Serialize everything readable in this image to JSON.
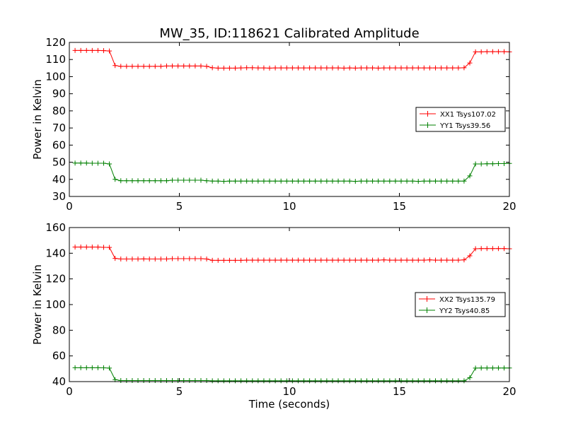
{
  "chart_data": {
    "title": "MW_35, ID:118621 Calibrated Amplitude",
    "xlabel": "Time (seconds)",
    "grid": false,
    "legend_position": "right",
    "colors": {
      "xx": "#ff0000",
      "yy": "#008000"
    },
    "subplots": [
      {
        "type": "line",
        "ylabel": "Power in Kelvin",
        "xlim": [
          0,
          20
        ],
        "ylim": [
          30,
          120
        ],
        "xticks": [
          0,
          5,
          10,
          15,
          20
        ],
        "yticks": [
          30,
          40,
          50,
          60,
          70,
          80,
          90,
          100,
          110,
          120
        ],
        "series": [
          {
            "name": "XX1 Tsys107.02",
            "color_key": "xx",
            "x": [
              0.26,
              0.52,
              0.78,
              1.04,
              1.3,
              1.56,
              1.82,
              2.08,
              2.34,
              2.6,
              2.86,
              3.12,
              3.38,
              3.64,
              3.9,
              4.16,
              4.42,
              4.68,
              4.94,
              5.2,
              5.46,
              5.72,
              5.98,
              6.24,
              6.5,
              6.76,
              7.02,
              7.28,
              7.54,
              7.8,
              8.06,
              8.32,
              8.58,
              8.84,
              9.1,
              9.36,
              9.62,
              9.88,
              10.14,
              10.4,
              10.66,
              10.92,
              11.18,
              11.44,
              11.7,
              11.96,
              12.22,
              12.48,
              12.74,
              13.0,
              13.26,
              13.52,
              13.78,
              14.04,
              14.3,
              14.56,
              14.82,
              15.08,
              15.34,
              15.6,
              15.86,
              16.12,
              16.38,
              16.64,
              16.9,
              17.16,
              17.42,
              17.68,
              17.94,
              18.2,
              18.46,
              18.72,
              18.98,
              19.24,
              19.5,
              19.76,
              20.0
            ],
            "y": [
              115.3,
              115.3,
              115.3,
              115.3,
              115.3,
              115.2,
              115.0,
              106.5,
              106.0,
              106.0,
              106.0,
              106.0,
              106.0,
              106.0,
              106.0,
              106.0,
              106.2,
              106.2,
              106.2,
              106.2,
              106.2,
              106.2,
              106.2,
              106.0,
              105.2,
              105.0,
              105.0,
              105.0,
              105.0,
              105.1,
              105.2,
              105.2,
              105.1,
              105.1,
              105.0,
              105.1,
              105.1,
              105.1,
              105.1,
              105.1,
              105.1,
              105.1,
              105.1,
              105.1,
              105.1,
              105.1,
              105.1,
              105.0,
              105.1,
              105.0,
              105.1,
              105.1,
              105.1,
              105.0,
              105.1,
              105.1,
              105.1,
              105.1,
              105.1,
              105.1,
              105.1,
              105.1,
              105.1,
              105.1,
              105.1,
              105.1,
              105.1,
              105.1,
              105.2,
              108.0,
              114.5,
              114.5,
              114.6,
              114.6,
              114.6,
              114.6,
              114.5
            ]
          },
          {
            "name": "YY1 Tsys39.56",
            "color_key": "yy",
            "x": [
              0.26,
              0.52,
              0.78,
              1.04,
              1.3,
              1.56,
              1.82,
              2.08,
              2.34,
              2.6,
              2.86,
              3.12,
              3.38,
              3.64,
              3.9,
              4.16,
              4.42,
              4.68,
              4.94,
              5.2,
              5.46,
              5.72,
              5.98,
              6.24,
              6.5,
              6.76,
              7.02,
              7.28,
              7.54,
              7.8,
              8.06,
              8.32,
              8.58,
              8.84,
              9.1,
              9.36,
              9.62,
              9.88,
              10.14,
              10.4,
              10.66,
              10.92,
              11.18,
              11.44,
              11.7,
              11.96,
              12.22,
              12.48,
              12.74,
              13.0,
              13.26,
              13.52,
              13.78,
              14.04,
              14.3,
              14.56,
              14.82,
              15.08,
              15.34,
              15.6,
              15.86,
              16.12,
              16.38,
              16.64,
              16.9,
              17.16,
              17.42,
              17.68,
              17.94,
              18.2,
              18.46,
              18.72,
              18.98,
              19.24,
              19.5,
              19.76,
              20.0
            ],
            "y": [
              49.5,
              49.5,
              49.5,
              49.4,
              49.4,
              49.4,
              49.0,
              40.0,
              39.2,
              39.2,
              39.2,
              39.2,
              39.2,
              39.2,
              39.2,
              39.2,
              39.2,
              39.5,
              39.5,
              39.5,
              39.5,
              39.5,
              39.5,
              39.2,
              39.0,
              39.0,
              38.8,
              39.0,
              39.0,
              39.0,
              39.0,
              39.0,
              39.0,
              39.0,
              39.0,
              39.0,
              39.0,
              39.0,
              39.0,
              39.0,
              39.0,
              39.0,
              39.0,
              39.0,
              39.0,
              39.0,
              39.0,
              39.0,
              39.0,
              38.8,
              39.0,
              39.0,
              39.0,
              39.0,
              39.0,
              39.0,
              39.0,
              39.0,
              39.0,
              39.0,
              38.8,
              39.0,
              39.0,
              39.0,
              39.0,
              39.0,
              39.0,
              39.0,
              39.0,
              42.0,
              49.0,
              49.0,
              49.1,
              49.1,
              49.2,
              49.2,
              49.3
            ]
          }
        ]
      },
      {
        "type": "line",
        "ylabel": "Power in Kelvin",
        "xlim": [
          0,
          20
        ],
        "ylim": [
          40,
          160
        ],
        "xticks": [
          0,
          5,
          10,
          15,
          20
        ],
        "yticks": [
          40,
          60,
          80,
          100,
          120,
          140,
          160
        ],
        "series": [
          {
            "name": "XX2 Tsys135.79",
            "color_key": "xx",
            "x": [
              0.26,
              0.52,
              0.78,
              1.04,
              1.3,
              1.56,
              1.82,
              2.08,
              2.34,
              2.6,
              2.86,
              3.12,
              3.38,
              3.64,
              3.9,
              4.16,
              4.42,
              4.68,
              4.94,
              5.2,
              5.46,
              5.72,
              5.98,
              6.24,
              6.5,
              6.76,
              7.02,
              7.28,
              7.54,
              7.8,
              8.06,
              8.32,
              8.58,
              8.84,
              9.1,
              9.36,
              9.62,
              9.88,
              10.14,
              10.4,
              10.66,
              10.92,
              11.18,
              11.44,
              11.7,
              11.96,
              12.22,
              12.48,
              12.74,
              13.0,
              13.26,
              13.52,
              13.78,
              14.04,
              14.3,
              14.56,
              14.82,
              15.08,
              15.34,
              15.6,
              15.86,
              16.12,
              16.38,
              16.64,
              16.9,
              17.16,
              17.42,
              17.68,
              17.94,
              18.2,
              18.46,
              18.72,
              18.98,
              19.24,
              19.5,
              19.76,
              20.0
            ],
            "y": [
              144.8,
              144.8,
              144.8,
              144.8,
              144.8,
              144.6,
              144.5,
              136.0,
              135.5,
              135.5,
              135.5,
              135.5,
              135.6,
              135.5,
              135.5,
              135.5,
              135.5,
              135.8,
              135.8,
              135.8,
              135.8,
              135.8,
              135.8,
              135.5,
              134.5,
              134.5,
              134.5,
              134.5,
              134.5,
              134.5,
              134.6,
              134.6,
              134.6,
              134.6,
              134.6,
              134.6,
              134.6,
              134.6,
              134.6,
              134.6,
              134.6,
              134.6,
              134.6,
              134.6,
              134.6,
              134.6,
              134.6,
              134.6,
              134.6,
              134.6,
              134.6,
              134.6,
              134.6,
              134.6,
              134.8,
              134.6,
              134.6,
              134.6,
              134.6,
              134.6,
              134.6,
              134.6,
              134.8,
              134.6,
              134.6,
              134.6,
              134.6,
              134.6,
              134.8,
              138.0,
              143.5,
              143.6,
              143.6,
              143.6,
              143.6,
              143.6,
              143.5
            ]
          },
          {
            "name": "YY2 Tsys40.85",
            "color_key": "yy",
            "x": [
              0.26,
              0.52,
              0.78,
              1.04,
              1.3,
              1.56,
              1.82,
              2.08,
              2.34,
              2.6,
              2.86,
              3.12,
              3.38,
              3.64,
              3.9,
              4.16,
              4.42,
              4.68,
              4.94,
              5.2,
              5.46,
              5.72,
              5.98,
              6.24,
              6.5,
              6.76,
              7.02,
              7.28,
              7.54,
              7.8,
              8.06,
              8.32,
              8.58,
              8.84,
              9.1,
              9.36,
              9.62,
              9.88,
              10.14,
              10.4,
              10.66,
              10.92,
              11.18,
              11.44,
              11.7,
              11.96,
              12.22,
              12.48,
              12.74,
              13.0,
              13.26,
              13.52,
              13.78,
              14.04,
              14.3,
              14.56,
              14.82,
              15.08,
              15.34,
              15.6,
              15.86,
              16.12,
              16.38,
              16.64,
              16.9,
              17.16,
              17.42,
              17.68,
              17.94,
              18.2,
              18.46,
              18.72,
              18.98,
              19.24,
              19.5,
              19.76,
              20.0
            ],
            "y": [
              50.8,
              50.8,
              50.8,
              50.8,
              50.8,
              50.7,
              50.5,
              41.5,
              40.8,
              40.8,
              40.8,
              40.8,
              40.8,
              40.8,
              40.8,
              40.8,
              40.8,
              40.8,
              40.8,
              40.8,
              40.8,
              40.8,
              40.8,
              40.8,
              40.6,
              40.6,
              40.6,
              40.6,
              40.6,
              40.6,
              40.6,
              40.6,
              40.6,
              40.6,
              40.6,
              40.6,
              40.6,
              40.6,
              40.6,
              40.6,
              40.6,
              40.6,
              40.6,
              40.6,
              40.6,
              40.6,
              40.6,
              40.6,
              40.6,
              40.6,
              40.6,
              40.6,
              40.6,
              40.6,
              40.6,
              40.6,
              40.6,
              40.6,
              40.6,
              40.6,
              40.6,
              40.6,
              40.6,
              40.6,
              40.6,
              40.6,
              40.6,
              40.6,
              40.6,
              43.0,
              50.5,
              50.6,
              50.6,
              50.6,
              50.6,
              50.6,
              50.6
            ]
          }
        ]
      }
    ]
  }
}
